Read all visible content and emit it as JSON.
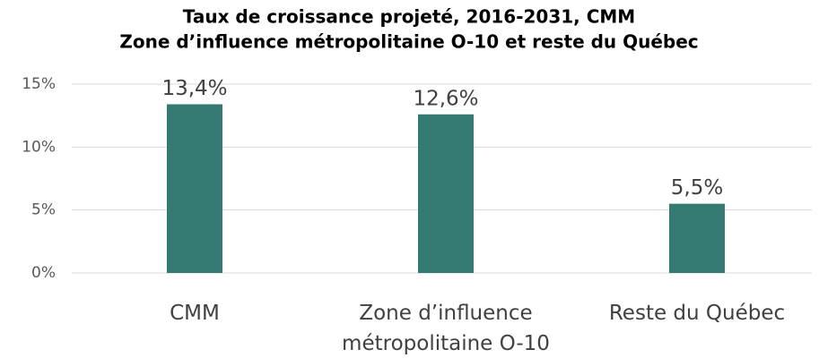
{
  "chart_data": {
    "type": "bar",
    "title": "Taux de croissance projeté, 2016-2031, CMM",
    "subtitle": "Zone d’influence métropolitaine O-10 et reste du Québec",
    "categories": [
      "CMM",
      "Zone d’influence métropolitaine O-10",
      "Reste du Québec"
    ],
    "values": [
      13.4,
      12.6,
      5.5
    ],
    "value_labels": [
      "13,4%",
      "12,6%",
      "5,5%"
    ],
    "color": "#357a72",
    "ylim": [
      0,
      15
    ],
    "yticks": [
      {
        "value": 0,
        "label": "0%"
      },
      {
        "value": 5,
        "label": "5%"
      },
      {
        "value": 10,
        "label": "10%"
      },
      {
        "value": 15,
        "label": "15%"
      }
    ],
    "grid": true
  }
}
